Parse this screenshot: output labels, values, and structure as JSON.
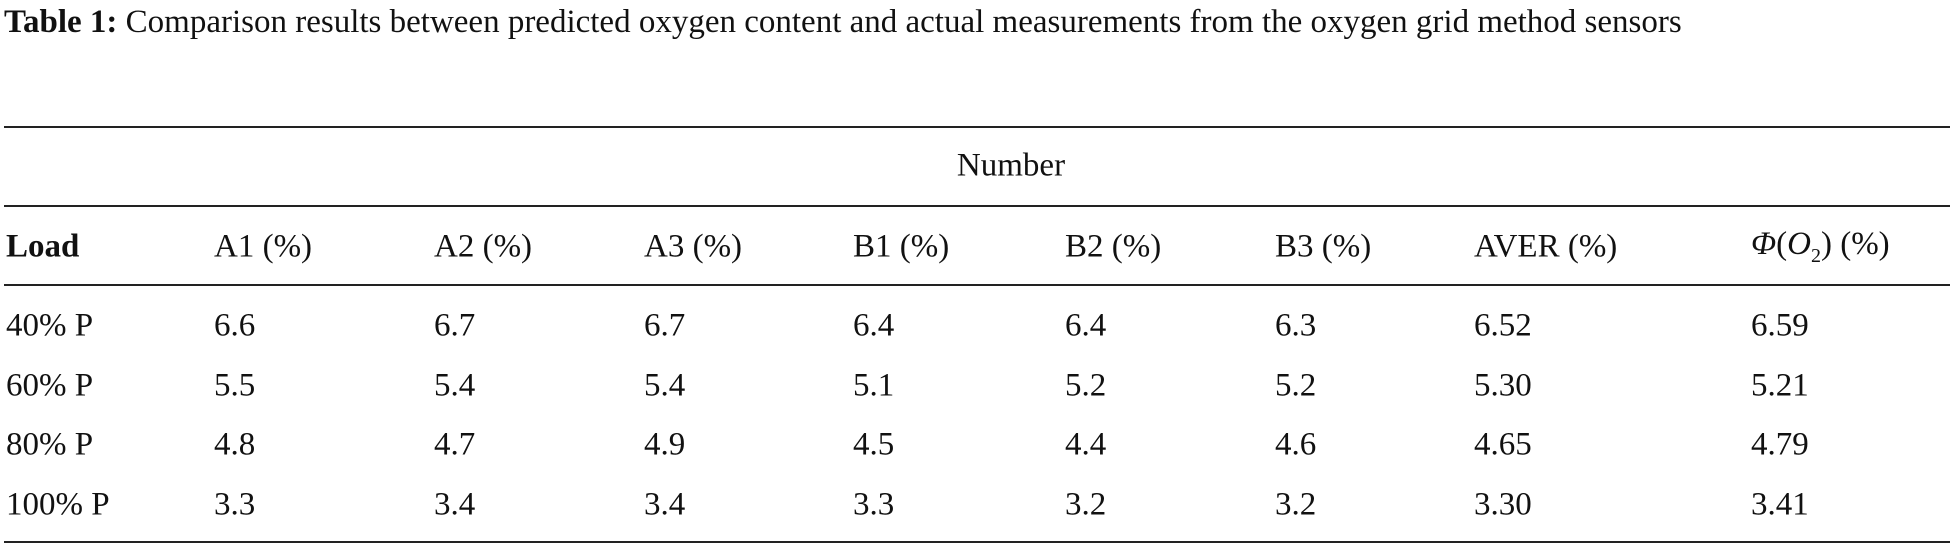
{
  "caption": {
    "label": "Table 1:",
    "text": "Comparison results between predicted oxygen content and actual measurements from the oxygen grid method sensors"
  },
  "table": {
    "spanner": "Number",
    "columns": [
      "Load",
      "A1 (%)",
      "A2 (%)",
      "A3 (%)",
      "B1 (%)",
      "B2 (%)",
      "B3 (%)",
      "AVER (%)",
      {
        "symbol": "Φ",
        "open": "(",
        "var": "O",
        "sub": "2",
        "close": ") (%)"
      }
    ],
    "rows": [
      [
        "40% P",
        "6.6",
        "6.7",
        "6.7",
        "6.4",
        "6.4",
        "6.3",
        "6.52",
        "6.59"
      ],
      [
        "60% P",
        "5.5",
        "5.4",
        "5.4",
        "5.1",
        "5.2",
        "5.2",
        "5.30",
        "5.21"
      ],
      [
        "80% P",
        "4.8",
        "4.7",
        "4.9",
        "4.5",
        "4.4",
        "4.6",
        "4.65",
        "4.79"
      ],
      [
        "100% P",
        "3.3",
        "3.4",
        "3.4",
        "3.3",
        "3.2",
        "3.2",
        "3.30",
        "3.41"
      ]
    ]
  }
}
